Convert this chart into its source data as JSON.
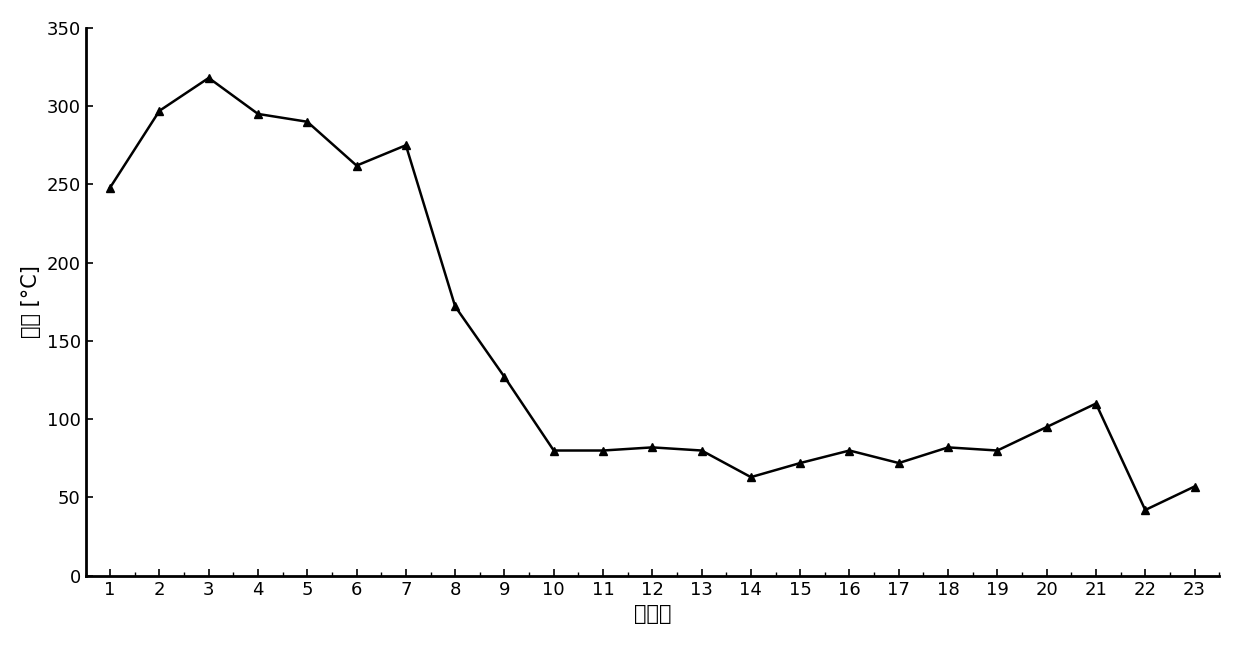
{
  "x": [
    1,
    2,
    3,
    4,
    5,
    6,
    7,
    8,
    9,
    10,
    11,
    12,
    13,
    14,
    15,
    16,
    17,
    18,
    19,
    20,
    21,
    22,
    23
  ],
  "y": [
    248,
    297,
    318,
    295,
    290,
    262,
    275,
    172,
    127,
    80,
    80,
    82,
    80,
    63,
    72,
    80,
    72,
    82,
    80,
    95,
    110,
    42,
    57
  ],
  "xlabel": "风笱号",
  "ylabel": "温度 [°C]",
  "ylim": [
    0,
    350
  ],
  "yticks": [
    0,
    50,
    100,
    150,
    200,
    250,
    300,
    350
  ],
  "line_color": "#000000",
  "marker": "^",
  "marker_color": "#000000",
  "marker_size": 6,
  "line_width": 1.8,
  "background_color": "#ffffff",
  "tick_fontsize": 13,
  "label_fontsize": 15
}
